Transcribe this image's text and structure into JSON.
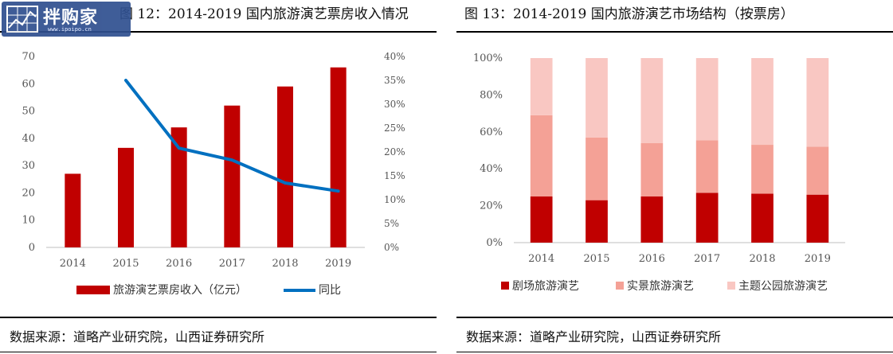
{
  "watermark": {
    "text": "拌购家",
    "sub": "www.ipoipo.cn"
  },
  "figures": [
    {
      "title": "图 12：2014-2019 国内旅游演艺票房收入情况",
      "source": "数据来源：道略产业研究院，山西证券研究所"
    },
    {
      "title": "图 13：2014-2019 国内旅游演艺市场结构（按票房）",
      "source": "数据来源：道略产业研究院，山西证券研究所"
    }
  ],
  "chart_data": [
    {
      "type": "bar",
      "categories": [
        "2014",
        "2015",
        "2016",
        "2017",
        "2018",
        "2019"
      ],
      "series": [
        {
          "name": "旅游演艺票房收入（亿元）",
          "type": "bar",
          "axis": "left",
          "color": "#c00000",
          "values": [
            27,
            36.5,
            44,
            52,
            59,
            66
          ]
        },
        {
          "name": "同比",
          "type": "line",
          "axis": "right",
          "color": "#0070c0",
          "values": [
            null,
            0.35,
            0.208,
            0.183,
            0.135,
            0.118
          ]
        }
      ],
      "y_left": {
        "min": 0,
        "max": 70,
        "ticks": [
          "0",
          "10",
          "20",
          "30",
          "40",
          "50",
          "60",
          "70"
        ]
      },
      "y_right": {
        "min": 0,
        "max": 0.4,
        "ticks": [
          "0%",
          "5%",
          "10%",
          "15%",
          "20%",
          "25%",
          "30%",
          "35%",
          "40%"
        ]
      },
      "grid": false,
      "legend": "bottom"
    },
    {
      "type": "bar",
      "stacked": true,
      "categories": [
        "2014",
        "2015",
        "2016",
        "2017",
        "2018",
        "2019"
      ],
      "series": [
        {
          "name": "剧场旅游演艺",
          "color": "#c00000",
          "values": [
            0.25,
            0.23,
            0.25,
            0.27,
            0.265,
            0.26
          ]
        },
        {
          "name": "实景旅游演艺",
          "color": "#f4a196",
          "values": [
            0.44,
            0.34,
            0.29,
            0.285,
            0.265,
            0.26
          ]
        },
        {
          "name": "主题公园旅游演艺",
          "color": "#f9c7c2",
          "values": [
            0.31,
            0.43,
            0.46,
            0.445,
            0.47,
            0.48
          ]
        }
      ],
      "y": {
        "min": 0,
        "max": 1,
        "ticks": [
          "0%",
          "20%",
          "40%",
          "60%",
          "80%",
          "100%"
        ]
      },
      "grid": false,
      "legend": "bottom"
    }
  ]
}
